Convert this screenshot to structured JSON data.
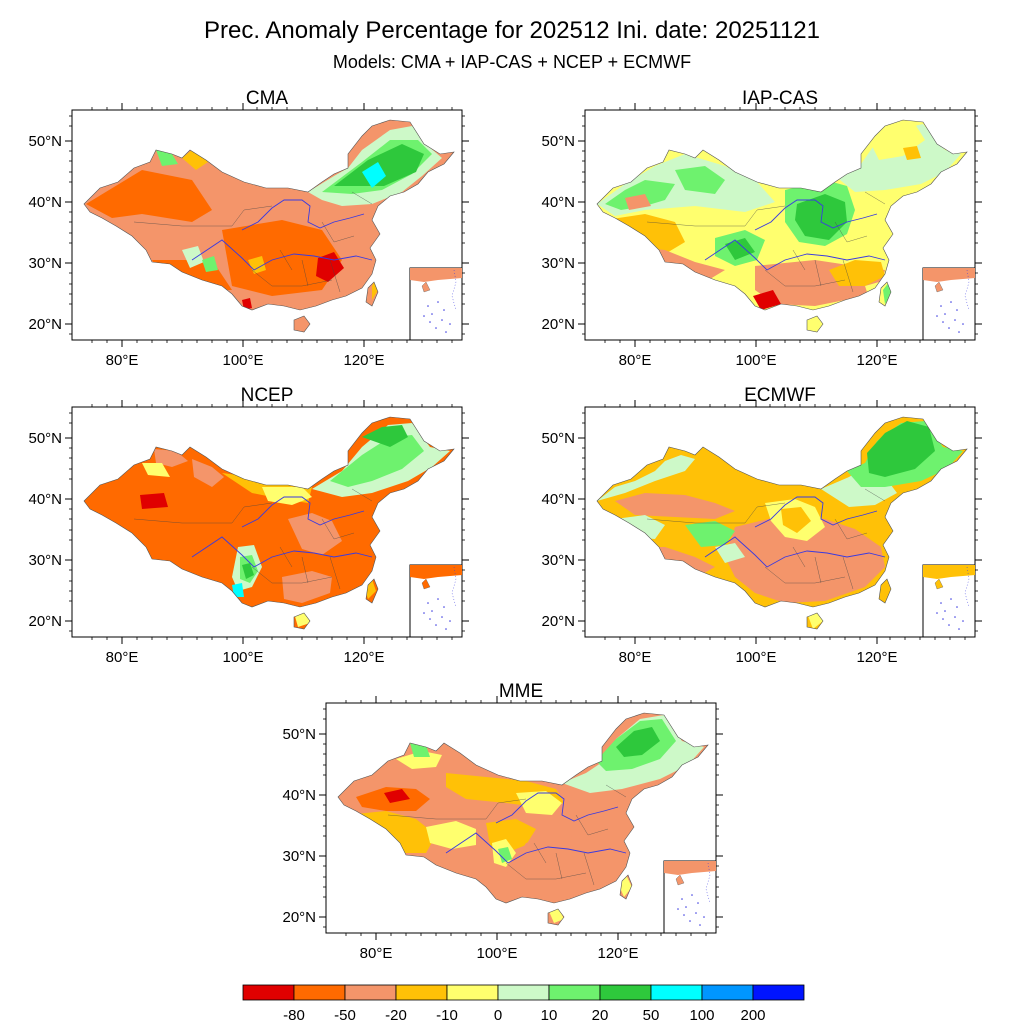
{
  "title": "Prec. Anomaly Percentage for 202512 Ini. date: 20251121",
  "subtitle": "Models: CMA + IAP-CAS + NCEP + ECMWF",
  "panels": [
    {
      "name": "CMA",
      "dominant": "-50 to -20 (salmon/orange)",
      "notable": [
        "northeast positive 20–100",
        "south-central pocket -80"
      ]
    },
    {
      "name": "IAP-CAS",
      "dominant": "mixed",
      "notable": [
        "central/north positive 20–50",
        "southwest Yunnan -80",
        "south -50 to -20"
      ]
    },
    {
      "name": "NCEP",
      "dominant": "-80 to -50 (dark orange)",
      "notable": [
        "western Tibet pocket below -80",
        "northeast positive 10–50",
        "southwest wet strip up to 100"
      ]
    },
    {
      "name": "ECMWF",
      "dominant": "-20 to -10 (yellow-orange)",
      "notable": [
        "northeast 20–50",
        "south -50 to -20"
      ]
    },
    {
      "name": "MME",
      "dominant": "-50 to -10",
      "notable": [
        "northeast 10–50",
        "Xinjiang -80 to -50",
        "Sichuan small positive"
      ]
    }
  ],
  "axes": {
    "lat_labels": [
      "20°N",
      "30°N",
      "40°N",
      "50°N"
    ],
    "lon_labels": [
      "80°E",
      "100°E",
      "120°E"
    ]
  },
  "colorbar": {
    "labels": [
      "-80",
      "-50",
      "-20",
      "-10",
      "0",
      "10",
      "20",
      "50",
      "100",
      "200"
    ],
    "colors": [
      "#e00000",
      "#ff6a00",
      "#f4956a",
      "#ffc107",
      "#ffff6e",
      "#cdf9c8",
      "#6ef26e",
      "#2ec83c",
      "#00ffff",
      "#0096ff",
      "#0014ff"
    ]
  },
  "colors": {
    "river": "#3a3ae0",
    "border": "#444444"
  }
}
